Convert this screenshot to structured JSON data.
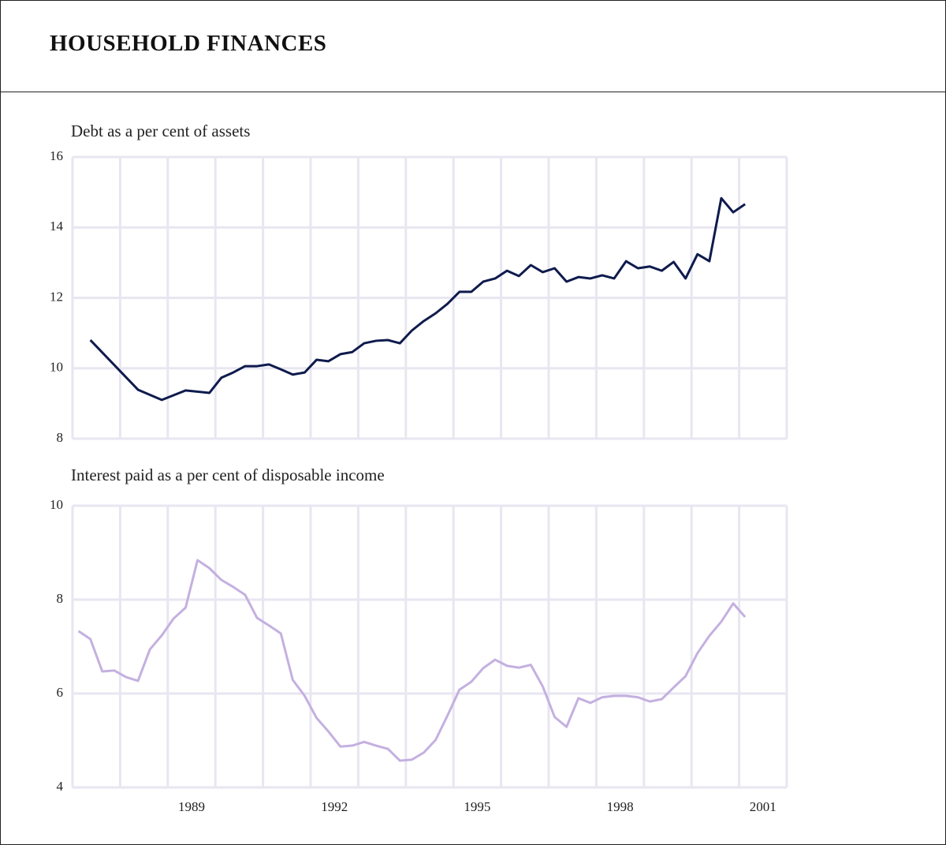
{
  "header": {
    "title": "HOUSEHOLD FINANCES"
  },
  "chart_data": [
    {
      "type": "line",
      "title": "Debt as a per cent of assets",
      "color": "#0f1b4d",
      "grid": true,
      "xlim": [
        1986.5,
        2001.5
      ],
      "xgrid": [
        1987.5,
        1988.5,
        1989.5,
        1990.5,
        1991.5,
        1992.5,
        1993.5,
        1994.5,
        1995.5,
        1996.5,
        1997.5,
        1998.5,
        1999.5,
        2000.5
      ],
      "ylim": [
        8,
        16
      ],
      "yticks": [
        8,
        10,
        12,
        14,
        16
      ],
      "x": [
        1986.875,
        1987.875,
        1988.375,
        1988.875,
        1989.375,
        1989.625,
        1989.875,
        1990.125,
        1990.375,
        1990.625,
        1990.875,
        1991.125,
        1991.375,
        1991.625,
        1991.875,
        1992.125,
        1992.375,
        1992.625,
        1992.875,
        1993.125,
        1993.375,
        1993.625,
        1993.875,
        1994.125,
        1994.375,
        1994.625,
        1994.875,
        1995.125,
        1995.375,
        1995.625,
        1995.875,
        1996.125,
        1996.375,
        1996.625,
        1996.875,
        1997.125,
        1997.375,
        1997.625,
        1997.875,
        1998.125,
        1998.375,
        1998.625,
        1998.875,
        1999.125,
        1999.375,
        1999.625,
        1999.875,
        2000.125,
        2000.375,
        2000.625
      ],
      "values": [
        10.8,
        9.39,
        9.1,
        9.37,
        9.3,
        9.73,
        9.88,
        10.06,
        10.06,
        10.11,
        9.97,
        9.82,
        9.88,
        10.24,
        10.2,
        10.4,
        10.46,
        10.71,
        10.78,
        10.8,
        10.71,
        11.07,
        11.34,
        11.56,
        11.83,
        12.17,
        12.17,
        12.46,
        12.55,
        12.77,
        12.62,
        12.93,
        12.73,
        12.84,
        12.46,
        12.59,
        12.55,
        12.64,
        12.55,
        13.04,
        12.84,
        12.89,
        12.77,
        13.02,
        12.55,
        13.24,
        13.04,
        14.83,
        14.43,
        14.66
      ]
    },
    {
      "type": "line",
      "title": "Interest paid as a per cent of disposable income",
      "color": "#c4b0e0",
      "grid": true,
      "xlim": [
        1986.5,
        2001.5
      ],
      "xgrid": [
        1987.5,
        1988.5,
        1989.5,
        1990.5,
        1991.5,
        1992.5,
        1993.5,
        1994.5,
        1995.5,
        1996.5,
        1997.5,
        1998.5,
        1999.5,
        2000.5
      ],
      "xticks": [
        1989,
        1992,
        1995,
        1998,
        2001
      ],
      "ylim": [
        4,
        10
      ],
      "yticks": [
        4,
        6,
        8,
        10
      ],
      "x": [
        1986.625,
        1986.875,
        1987.125,
        1987.375,
        1987.625,
        1987.875,
        1988.125,
        1988.375,
        1988.625,
        1988.875,
        1989.125,
        1989.375,
        1989.625,
        1989.875,
        1990.125,
        1990.375,
        1990.625,
        1990.875,
        1991.125,
        1991.375,
        1991.625,
        1991.875,
        1992.125,
        1992.375,
        1992.625,
        1992.875,
        1993.125,
        1993.375,
        1993.625,
        1993.875,
        1994.125,
        1994.375,
        1994.625,
        1994.875,
        1995.125,
        1995.375,
        1995.625,
        1995.875,
        1996.125,
        1996.375,
        1996.625,
        1996.875,
        1997.125,
        1997.375,
        1997.625,
        1997.875,
        1998.125,
        1998.375,
        1998.625,
        1998.875,
        1999.125,
        1999.375,
        1999.625,
        1999.875,
        2000.125,
        2000.375,
        2000.625
      ],
      "values": [
        7.33,
        7.16,
        6.47,
        6.49,
        6.35,
        6.27,
        6.94,
        7.24,
        7.6,
        7.83,
        8.84,
        8.67,
        8.42,
        8.27,
        8.1,
        7.61,
        7.45,
        7.28,
        6.29,
        5.95,
        5.48,
        5.19,
        4.87,
        4.89,
        4.97,
        4.89,
        4.82,
        4.57,
        4.59,
        4.74,
        5.01,
        5.53,
        6.08,
        6.25,
        6.54,
        6.72,
        6.59,
        6.55,
        6.61,
        6.15,
        5.5,
        5.29,
        5.9,
        5.8,
        5.92,
        5.95,
        5.95,
        5.92,
        5.83,
        5.88,
        6.13,
        6.37,
        6.86,
        7.23,
        7.53,
        7.92,
        7.63
      ]
    }
  ]
}
